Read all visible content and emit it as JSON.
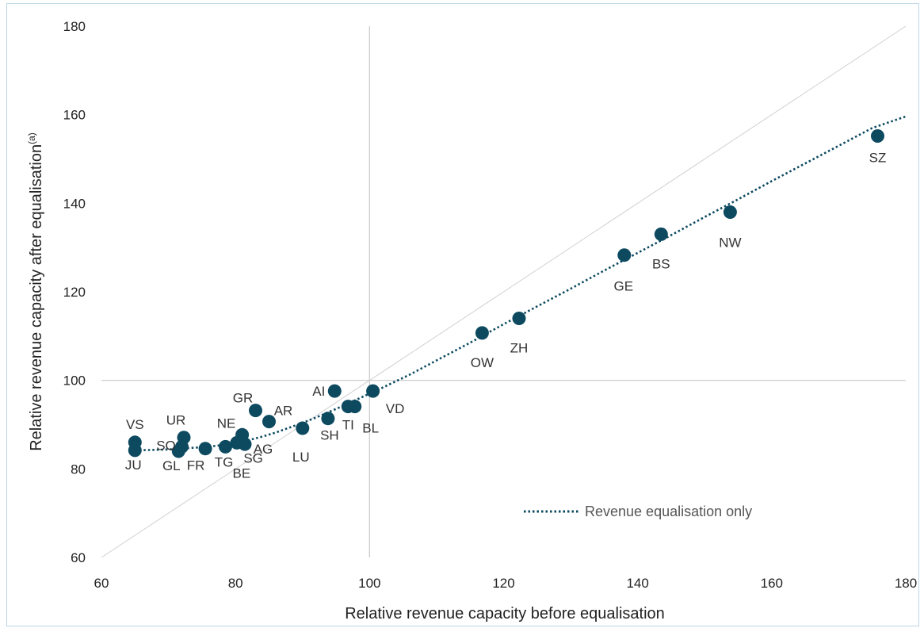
{
  "chart_data": {
    "type": "scatter",
    "xlabel": "Relative revenue capacity before equalisation",
    "ylabel_main": "Relative revenue capacity after equalisation",
    "ylabel_superscript": "(a)",
    "xlim": [
      60,
      180
    ],
    "ylim": [
      60,
      180
    ],
    "xticks": [
      60,
      80,
      100,
      120,
      140,
      160,
      180
    ],
    "yticks": [
      60,
      80,
      100,
      120,
      140,
      160,
      180
    ],
    "reference_lines": {
      "vertical_x": 100,
      "horizontal_y": 100,
      "diagonal": "y = x"
    },
    "legend": {
      "position": "bottom-right",
      "entries": [
        "Revenue equalisation only"
      ]
    },
    "colors": {
      "marker": "#0d4a60",
      "trend": "#0d4a60",
      "grid": "#c8c8c8",
      "diagonal": "#d0d0d0"
    },
    "points": [
      {
        "label": "VS",
        "x": 65.0,
        "y": 86.0
      },
      {
        "label": "JU",
        "x": 65.0,
        "y": 84.2
      },
      {
        "label": "UR",
        "x": 72.3,
        "y": 87.1
      },
      {
        "label": "SO",
        "x": 72.0,
        "y": 85.0
      },
      {
        "label": "GL",
        "x": 71.5,
        "y": 84.0
      },
      {
        "label": "FR",
        "x": 75.5,
        "y": 84.6
      },
      {
        "label": "TG",
        "x": 78.5,
        "y": 85.0
      },
      {
        "label": "NE",
        "x": 81.0,
        "y": 87.7
      },
      {
        "label": "BE",
        "x": 80.2,
        "y": 85.9
      },
      {
        "label": "SG",
        "x": 81.0,
        "y": 86.2
      },
      {
        "label": "AG",
        "x": 81.4,
        "y": 85.6
      },
      {
        "label": "GR",
        "x": 83.0,
        "y": 93.2
      },
      {
        "label": "AR",
        "x": 85.0,
        "y": 90.7
      },
      {
        "label": "LU",
        "x": 90.0,
        "y": 89.2
      },
      {
        "label": "SH",
        "x": 93.8,
        "y": 91.4
      },
      {
        "label": "AI",
        "x": 94.8,
        "y": 97.6
      },
      {
        "label": "TI",
        "x": 96.8,
        "y": 94.1
      },
      {
        "label": "BL",
        "x": 97.8,
        "y": 94.1
      },
      {
        "label": "VD",
        "x": 100.5,
        "y": 97.6
      },
      {
        "label": "OW",
        "x": 116.8,
        "y": 110.7
      },
      {
        "label": "ZH",
        "x": 122.3,
        "y": 114.0
      },
      {
        "label": "GE",
        "x": 138.0,
        "y": 128.3
      },
      {
        "label": "BS",
        "x": 143.5,
        "y": 133.0
      },
      {
        "label": "NW",
        "x": 153.8,
        "y": 138.0
      },
      {
        "label": "SZ",
        "x": 175.8,
        "y": 155.2
      }
    ],
    "trend_series": {
      "name": "Revenue equalisation only",
      "points": [
        [
          65,
          84.2
        ],
        [
          68,
          84.3
        ],
        [
          70,
          84.4
        ],
        [
          72,
          84.6
        ],
        [
          74,
          84.8
        ],
        [
          76,
          85.0
        ],
        [
          78,
          85.4
        ],
        [
          80,
          85.9
        ],
        [
          82,
          86.5
        ],
        [
          84,
          87.3
        ],
        [
          86,
          88.2
        ],
        [
          88,
          89.3
        ],
        [
          90,
          90.4
        ],
        [
          92,
          91.6
        ],
        [
          94,
          92.9
        ],
        [
          96,
          94.2
        ],
        [
          98,
          95.6
        ],
        [
          100,
          97.0
        ],
        [
          102,
          98.4
        ],
        [
          106,
          101.3
        ],
        [
          110,
          104.5
        ],
        [
          115,
          108.5
        ],
        [
          120,
          112.7
        ],
        [
          125,
          116.7
        ],
        [
          130,
          120.7
        ],
        [
          135,
          124.8
        ],
        [
          140,
          128.8
        ],
        [
          145,
          132.8
        ],
        [
          150,
          136.9
        ],
        [
          155,
          140.9
        ],
        [
          160,
          145.0
        ],
        [
          165,
          149.0
        ],
        [
          170,
          153.0
        ],
        [
          175,
          157.0
        ],
        [
          180,
          159.6
        ]
      ]
    }
  }
}
